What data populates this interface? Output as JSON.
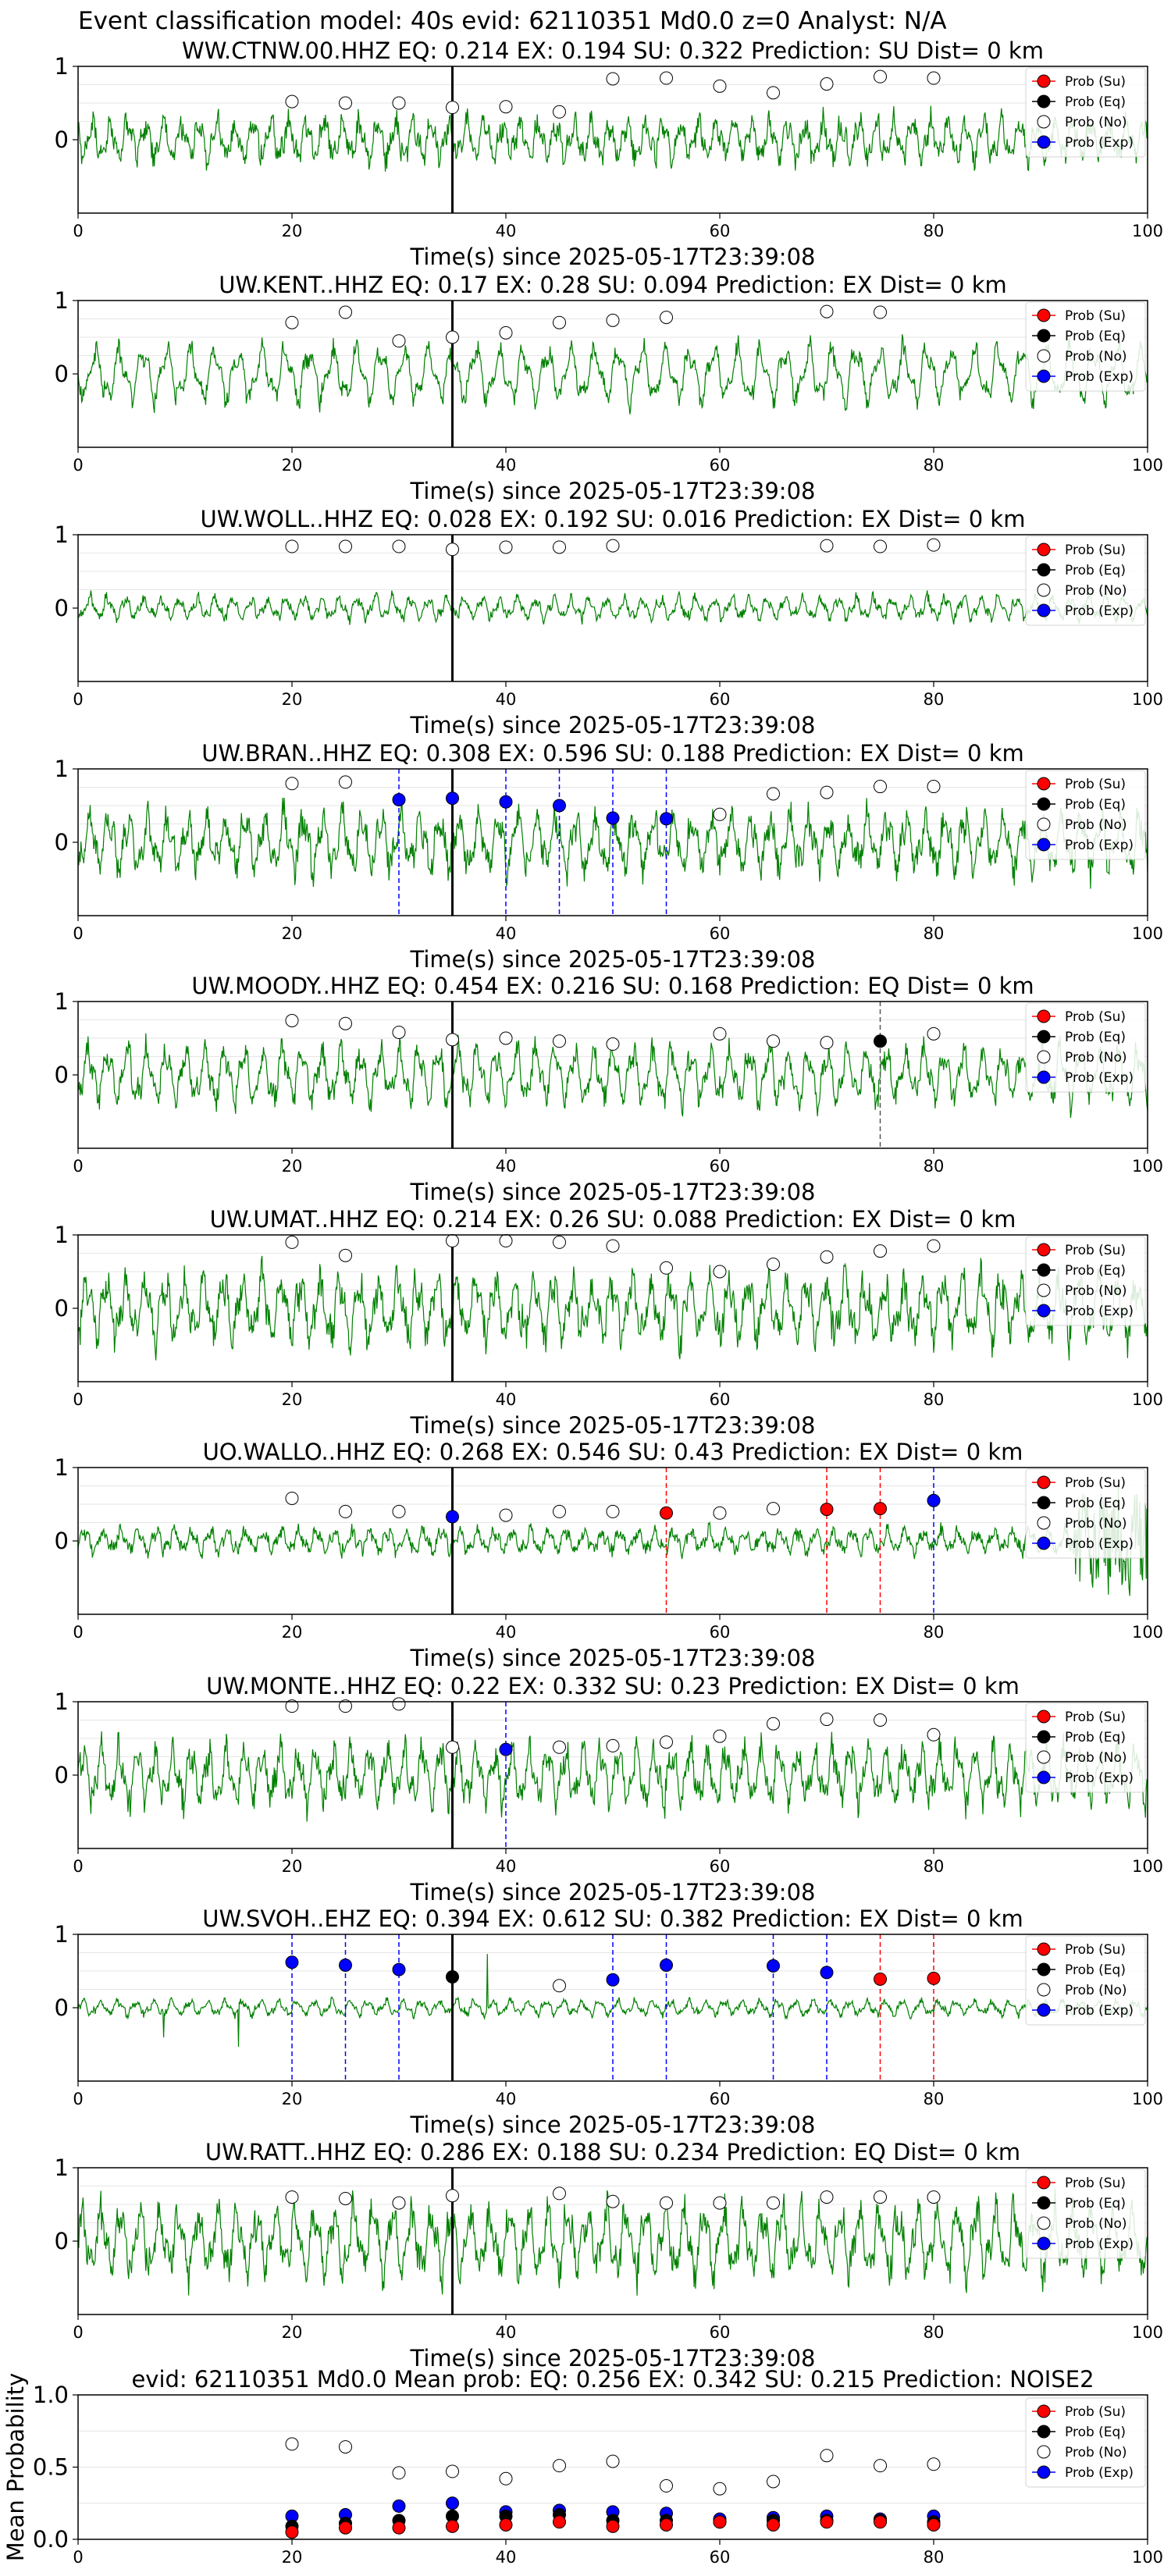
{
  "figure_title": "Event classification model: 40s evid: 62110351 Md0.0 z=0 Analyst: N/A",
  "legend_labels": [
    "Prob (Su)",
    "Prob (Eq)",
    "Prob (No)",
    "Prob (Exp)"
  ],
  "colors": {
    "waveform": "#008000",
    "su": "#ff0000",
    "eq": "#000000",
    "no": "#ffffff",
    "exp": "#0000ff",
    "axis": "#000000",
    "grid": "#e6e6e6"
  },
  "chart_data": [
    {
      "type": "line",
      "title": "WW.CTNW.00.HHZ   EQ: 0.214  EX: 0.194  SU: 0.322   Prediction: SU    Dist= 0 km",
      "xlabel": "Time(s) since 2025-05-17T23:39:08",
      "ylabel": "",
      "xlim": [
        0,
        100
      ],
      "ylim": [
        -1,
        1
      ],
      "xticks": [
        0,
        20,
        40,
        60,
        80,
        100
      ],
      "yticks": [
        0,
        1
      ],
      "vline": 35,
      "noise": {
        "x": [
          20,
          25,
          30,
          35,
          40,
          45,
          50,
          55,
          60,
          65,
          70,
          75,
          80
        ],
        "y": [
          0.52,
          0.5,
          0.5,
          0.44,
          0.45,
          0.38,
          0.83,
          0.84,
          0.73,
          0.64,
          0.76,
          0.86,
          0.84
        ]
      },
      "eq": {
        "x": [],
        "y": []
      },
      "exp": {
        "x": [],
        "y": []
      },
      "su": {
        "x": [],
        "y": []
      }
    },
    {
      "type": "line",
      "title": "UW.KENT..HHZ   EQ: 0.17  EX: 0.28  SU: 0.094   Prediction: EX    Dist= 0 km",
      "xlabel": "Time(s) since 2025-05-17T23:39:08",
      "ylabel": "",
      "xlim": [
        0,
        100
      ],
      "ylim": [
        -1,
        1
      ],
      "xticks": [
        0,
        20,
        40,
        60,
        80,
        100
      ],
      "yticks": [
        0,
        1
      ],
      "vline": 35,
      "noise": {
        "x": [
          20,
          25,
          30,
          35,
          40,
          45,
          50,
          55,
          70,
          75
        ],
        "y": [
          0.7,
          0.84,
          0.45,
          0.5,
          0.56,
          0.7,
          0.73,
          0.77,
          0.85,
          0.84
        ]
      },
      "eq": {
        "x": [],
        "y": []
      },
      "exp": {
        "x": [],
        "y": []
      },
      "su": {
        "x": [],
        "y": []
      }
    },
    {
      "type": "line",
      "title": "UW.WOLL..HHZ   EQ: 0.028  EX: 0.192  SU: 0.016   Prediction: EX    Dist= 0 km",
      "xlabel": "Time(s) since 2025-05-17T23:39:08",
      "ylabel": "",
      "xlim": [
        0,
        100
      ],
      "ylim": [
        -1,
        1
      ],
      "xticks": [
        0,
        20,
        40,
        60,
        80,
        100
      ],
      "yticks": [
        0,
        1
      ],
      "vline": 35,
      "noise": {
        "x": [
          20,
          25,
          30,
          35,
          40,
          45,
          50,
          70,
          75,
          80
        ],
        "y": [
          0.84,
          0.84,
          0.84,
          0.8,
          0.83,
          0.83,
          0.85,
          0.85,
          0.84,
          0.86
        ]
      },
      "eq": {
        "x": [],
        "y": []
      },
      "exp": {
        "x": [],
        "y": []
      },
      "su": {
        "x": [],
        "y": []
      }
    },
    {
      "type": "line",
      "title": "UW.BRAN..HHZ   EQ: 0.308  EX: 0.596  SU: 0.188   Prediction: EX    Dist= 0 km",
      "xlabel": "Time(s) since 2025-05-17T23:39:08",
      "ylabel": "",
      "xlim": [
        0,
        100
      ],
      "ylim": [
        -1,
        1
      ],
      "xticks": [
        0,
        20,
        40,
        60,
        80,
        100
      ],
      "yticks": [
        0,
        1
      ],
      "vline": 35,
      "noise": {
        "x": [
          20,
          25,
          60,
          65,
          70,
          75,
          80
        ],
        "y": [
          0.8,
          0.82,
          0.38,
          0.66,
          0.68,
          0.76,
          0.76
        ]
      },
      "eq": {
        "x": [],
        "y": []
      },
      "exp": {
        "x": [
          30,
          35,
          40,
          45,
          50,
          55
        ],
        "y": [
          0.58,
          0.6,
          0.55,
          0.5,
          0.33,
          0.32
        ]
      },
      "su": {
        "x": [],
        "y": []
      }
    },
    {
      "type": "line",
      "title": "UW.MOODY..HHZ   EQ: 0.454  EX: 0.216  SU: 0.168   Prediction: EQ    Dist= 0 km",
      "xlabel": "Time(s) since 2025-05-17T23:39:08",
      "ylabel": "",
      "xlim": [
        0,
        100
      ],
      "ylim": [
        -1,
        1
      ],
      "xticks": [
        0,
        20,
        40,
        60,
        80,
        100
      ],
      "yticks": [
        0,
        1
      ],
      "vline": 35,
      "noise": {
        "x": [
          20,
          25,
          30,
          35,
          40,
          45,
          50,
          60,
          65,
          70,
          80
        ],
        "y": [
          0.74,
          0.7,
          0.58,
          0.48,
          0.5,
          0.46,
          0.42,
          0.56,
          0.46,
          0.44,
          0.56
        ]
      },
      "eq": {
        "x": [
          75
        ],
        "y": [
          0.46
        ]
      },
      "exp": {
        "x": [],
        "y": []
      },
      "su": {
        "x": [],
        "y": []
      }
    },
    {
      "type": "line",
      "title": "UW.UMAT..HHZ   EQ: 0.214  EX: 0.26  SU: 0.088   Prediction: EX    Dist= 0 km",
      "xlabel": "Time(s) since 2025-05-17T23:39:08",
      "ylabel": "",
      "xlim": [
        0,
        100
      ],
      "ylim": [
        -1,
        1
      ],
      "xticks": [
        0,
        20,
        40,
        60,
        80,
        100
      ],
      "yticks": [
        0,
        1
      ],
      "vline": 35,
      "noise": {
        "x": [
          20,
          25,
          35,
          40,
          45,
          50,
          55,
          60,
          65,
          70,
          75,
          80
        ],
        "y": [
          0.9,
          0.72,
          0.92,
          0.92,
          0.9,
          0.85,
          0.55,
          0.5,
          0.6,
          0.7,
          0.78,
          0.85
        ]
      },
      "eq": {
        "x": [],
        "y": []
      },
      "exp": {
        "x": [],
        "y": []
      },
      "su": {
        "x": [],
        "y": []
      }
    },
    {
      "type": "line",
      "title": "UO.WALLO..HHZ   EQ: 0.268  EX: 0.546  SU: 0.43   Prediction: EX    Dist= 0 km",
      "xlabel": "Time(s) since 2025-05-17T23:39:08",
      "ylabel": "",
      "xlim": [
        0,
        100
      ],
      "ylim": [
        -1,
        1
      ],
      "xticks": [
        0,
        20,
        40,
        60,
        80,
        100
      ],
      "yticks": [
        0,
        1
      ],
      "vline": 35,
      "noise": {
        "x": [
          20,
          25,
          30,
          40,
          45,
          50,
          60,
          65
        ],
        "y": [
          0.58,
          0.4,
          0.4,
          0.35,
          0.4,
          0.4,
          0.38,
          0.44
        ]
      },
      "eq": {
        "x": [],
        "y": []
      },
      "exp": {
        "x": [
          35,
          80
        ],
        "y": [
          0.33,
          0.55
        ]
      },
      "su": {
        "x": [
          55,
          70,
          75
        ],
        "y": [
          0.38,
          0.43,
          0.44
        ]
      }
    },
    {
      "type": "line",
      "title": "UW.MONTE..HHZ   EQ: 0.22  EX: 0.332  SU: 0.23   Prediction: EX    Dist= 0 km",
      "xlabel": "Time(s) since 2025-05-17T23:39:08",
      "ylabel": "",
      "xlim": [
        0,
        100
      ],
      "ylim": [
        -1,
        1
      ],
      "xticks": [
        0,
        20,
        40,
        60,
        80,
        100
      ],
      "yticks": [
        0,
        1
      ],
      "vline": 35,
      "noise": {
        "x": [
          20,
          25,
          30,
          35,
          45,
          50,
          55,
          60,
          65,
          70,
          75,
          80
        ],
        "y": [
          0.94,
          0.94,
          0.97,
          0.38,
          0.38,
          0.4,
          0.45,
          0.53,
          0.7,
          0.76,
          0.75,
          0.55
        ]
      },
      "eq": {
        "x": [],
        "y": []
      },
      "exp": {
        "x": [
          40
        ],
        "y": [
          0.35
        ]
      },
      "su": {
        "x": [],
        "y": []
      }
    },
    {
      "type": "line",
      "title": "UW.SVOH..EHZ   EQ: 0.394  EX: 0.612  SU: 0.382   Prediction: EX    Dist= 0 km",
      "xlabel": "Time(s) since 2025-05-17T23:39:08",
      "ylabel": "",
      "xlim": [
        0,
        100
      ],
      "ylim": [
        -1,
        1
      ],
      "xticks": [
        0,
        20,
        40,
        60,
        80,
        100
      ],
      "yticks": [
        0,
        1
      ],
      "vline": 35,
      "noise": {
        "x": [
          45
        ],
        "y": [
          0.3
        ]
      },
      "eq": {
        "x": [
          35
        ],
        "y": [
          0.42
        ]
      },
      "exp": {
        "x": [
          20,
          25,
          30,
          50,
          55,
          65,
          70
        ],
        "y": [
          0.62,
          0.58,
          0.52,
          0.38,
          0.58,
          0.57,
          0.48
        ]
      },
      "su": {
        "x": [
          75,
          80
        ],
        "y": [
          0.39,
          0.4
        ]
      }
    },
    {
      "type": "line",
      "title": "UW.RATT..HHZ   EQ: 0.286  EX: 0.188  SU: 0.234   Prediction: EQ    Dist= 0 km",
      "xlabel": "Time(s) since 2025-05-17T23:39:08",
      "ylabel": "",
      "xlim": [
        0,
        100
      ],
      "ylim": [
        -1,
        1
      ],
      "xticks": [
        0,
        20,
        40,
        60,
        80,
        100
      ],
      "yticks": [
        0,
        1
      ],
      "vline": 35,
      "noise": {
        "x": [
          20,
          25,
          30,
          35,
          45,
          50,
          55,
          60,
          65,
          70,
          75,
          80
        ],
        "y": [
          0.6,
          0.58,
          0.52,
          0.62,
          0.65,
          0.54,
          0.52,
          0.52,
          0.52,
          0.6,
          0.6,
          0.6
        ]
      },
      "eq": {
        "x": [],
        "y": []
      },
      "exp": {
        "x": [],
        "y": []
      },
      "su": {
        "x": [],
        "y": []
      }
    },
    {
      "type": "scatter",
      "title": "evid: 62110351  Md0.0   Mean prob:   EQ: 0.256  EX: 0.342  SU: 0.215   Prediction: NOISE2",
      "xlabel": "",
      "ylabel": "Mean Probability",
      "xlim": [
        0,
        100
      ],
      "ylim": [
        0,
        1
      ],
      "xticks": [
        0,
        20,
        40,
        60,
        80,
        100
      ],
      "yticks": [
        0.0,
        0.5,
        1.0
      ],
      "ytick_labels": [
        "0.0",
        "0.5",
        "1.0"
      ],
      "x": [
        20,
        25,
        30,
        35,
        40,
        45,
        50,
        55,
        60,
        65,
        70,
        75,
        80
      ],
      "noise": [
        0.66,
        0.64,
        0.46,
        0.47,
        0.42,
        0.51,
        0.54,
        0.37,
        0.35,
        0.4,
        0.58,
        0.51,
        0.52
      ],
      "exp": [
        0.16,
        0.17,
        0.23,
        0.25,
        0.19,
        0.2,
        0.19,
        0.18,
        0.14,
        0.15,
        0.16,
        0.14,
        0.16
      ],
      "eq": [
        0.09,
        0.11,
        0.13,
        0.16,
        0.16,
        0.17,
        0.13,
        0.13,
        0.12,
        0.13,
        0.13,
        0.13,
        0.12
      ],
      "su": [
        0.05,
        0.08,
        0.08,
        0.09,
        0.1,
        0.12,
        0.09,
        0.1,
        0.12,
        0.1,
        0.12,
        0.12,
        0.1
      ]
    }
  ]
}
